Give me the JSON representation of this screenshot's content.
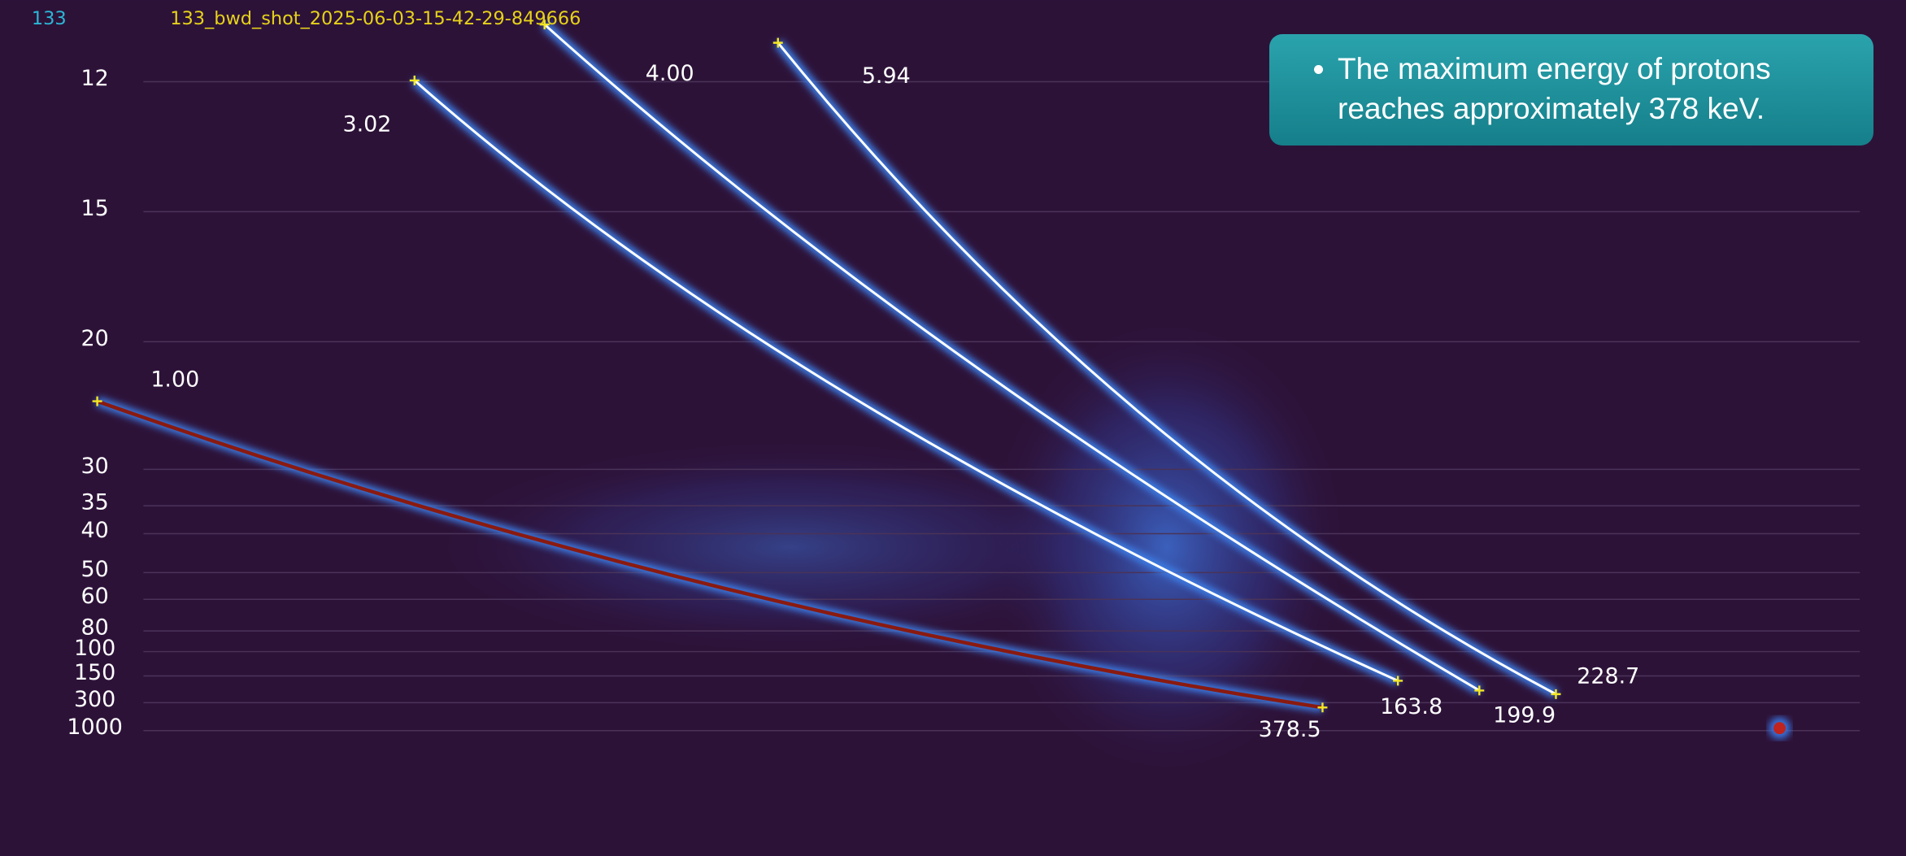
{
  "header": {
    "shot_number": "133",
    "filename": "133_bwd_shot_2025-06-03-15-42-29-849666"
  },
  "axis_labels": [
    "12",
    "15",
    "20",
    "30",
    "35",
    "40",
    "50",
    "60",
    "80",
    "100",
    "150",
    "300",
    "1000"
  ],
  "traces": [
    {
      "label": "1.00",
      "end_label": "378.5"
    },
    {
      "label": "3.02",
      "end_label": "163.8"
    },
    {
      "label": "4.00",
      "end_label": "199.9"
    },
    {
      "label": "5.94",
      "end_label": "228.7"
    }
  ],
  "callout": {
    "text": "The maximum energy of protons reaches approximately 378 keV."
  }
}
